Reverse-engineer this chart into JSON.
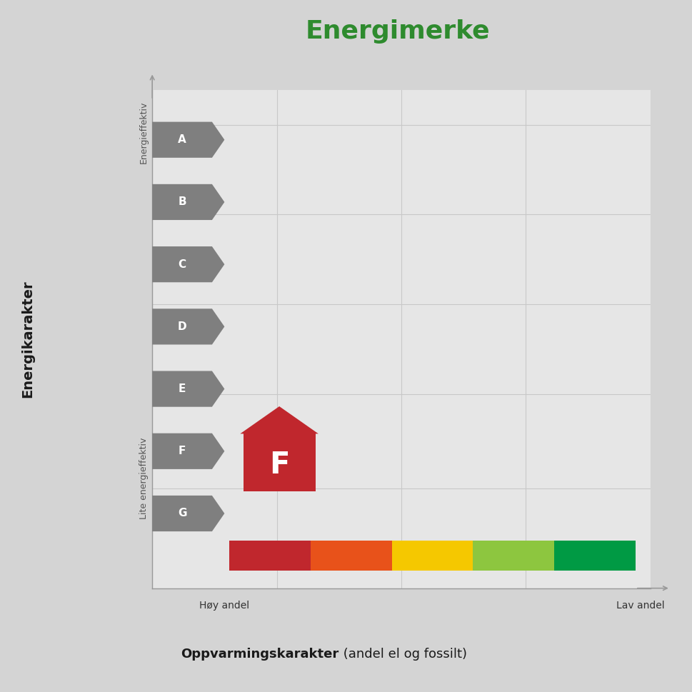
{
  "title": "Energimerke",
  "title_color": "#2e8b2e",
  "title_fontsize": 26,
  "background_color": "#d4d4d4",
  "plot_bg_color": "#e6e6e6",
  "energy_labels": [
    "A",
    "B",
    "C",
    "D",
    "E",
    "F",
    "G"
  ],
  "arrow_color": "#7f7f7f",
  "arrow_text_color": "#ffffff",
  "highlight_label": "F",
  "highlight_color": "#c0272d",
  "highlight_text_color": "#ffffff",
  "y_label_top": "Energieffektiv",
  "y_label_bottom": "Lite energieffektiv",
  "y_axis_label": "Energikarakter",
  "x_axis_label_bold": "Oppvarmingskarakter",
  "x_axis_label_normal": " (andel el og fossilt)",
  "x_label_left": "Høy andel",
  "x_label_right": "Lav andel",
  "color_bar_colors": [
    "#c0272d",
    "#e8521a",
    "#f5c800",
    "#8dc63f",
    "#009a44"
  ],
  "grid_color": "#c8c8c8"
}
